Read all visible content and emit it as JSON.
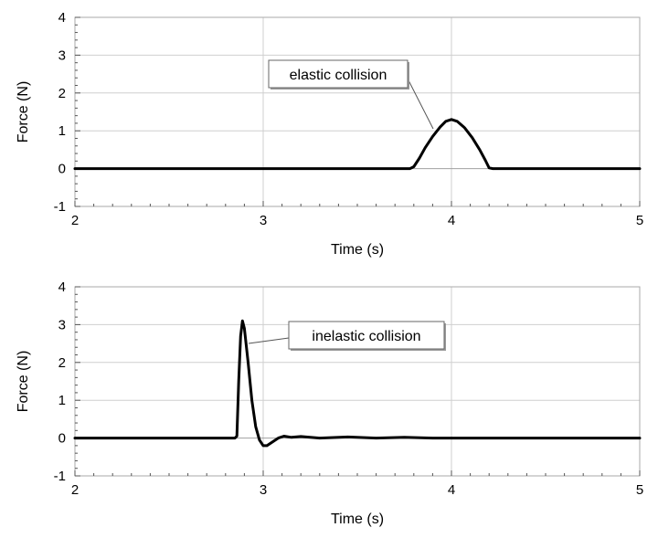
{
  "chart_data": [
    {
      "type": "line",
      "title": "",
      "xlabel": "Time (s)",
      "ylabel": "Force (N)",
      "xlim": [
        2,
        5
      ],
      "ylim": [
        -1,
        4
      ],
      "xticks": [
        2,
        3,
        4,
        5
      ],
      "yticks": [
        -1,
        0,
        1,
        2,
        3,
        4
      ],
      "grid": true,
      "annotation": "elastic collision",
      "series": [
        {
          "values_xy": [
            [
              2.0,
              0.0
            ],
            [
              3.0,
              0.0
            ],
            [
              3.75,
              0.0
            ],
            [
              3.78,
              0.0
            ],
            [
              3.8,
              0.05
            ],
            [
              3.83,
              0.28
            ],
            [
              3.86,
              0.55
            ],
            [
              3.9,
              0.85
            ],
            [
              3.94,
              1.1
            ],
            [
              3.97,
              1.25
            ],
            [
              4.0,
              1.3
            ],
            [
              4.03,
              1.25
            ],
            [
              4.07,
              1.08
            ],
            [
              4.11,
              0.82
            ],
            [
              4.15,
              0.5
            ],
            [
              4.18,
              0.22
            ],
            [
              4.2,
              0.02
            ],
            [
              4.22,
              0.0
            ],
            [
              5.0,
              0.0
            ]
          ]
        }
      ]
    },
    {
      "type": "line",
      "title": "",
      "xlabel": "Time (s)",
      "ylabel": "Force (N)",
      "xlim": [
        2,
        5
      ],
      "ylim": [
        -1,
        4
      ],
      "xticks": [
        2,
        3,
        4,
        5
      ],
      "yticks": [
        -1,
        0,
        1,
        2,
        3,
        4
      ],
      "grid": true,
      "annotation": "inelastic collision",
      "series": [
        {
          "values_xy": [
            [
              2.0,
              0.0
            ],
            [
              2.85,
              0.0
            ],
            [
              2.86,
              0.05
            ],
            [
              2.87,
              1.5
            ],
            [
              2.88,
              2.7
            ],
            [
              2.89,
              3.1
            ],
            [
              2.9,
              2.9
            ],
            [
              2.92,
              2.0
            ],
            [
              2.94,
              1.0
            ],
            [
              2.96,
              0.3
            ],
            [
              2.98,
              -0.05
            ],
            [
              3.0,
              -0.2
            ],
            [
              3.02,
              -0.2
            ],
            [
              3.05,
              -0.1
            ],
            [
              3.08,
              0.0
            ],
            [
              3.11,
              0.05
            ],
            [
              3.15,
              0.02
            ],
            [
              3.2,
              0.04
            ],
            [
              3.3,
              0.0
            ],
            [
              3.45,
              0.03
            ],
            [
              3.6,
              0.0
            ],
            [
              3.75,
              0.02
            ],
            [
              3.9,
              0.0
            ],
            [
              5.0,
              0.0
            ]
          ]
        }
      ]
    }
  ]
}
